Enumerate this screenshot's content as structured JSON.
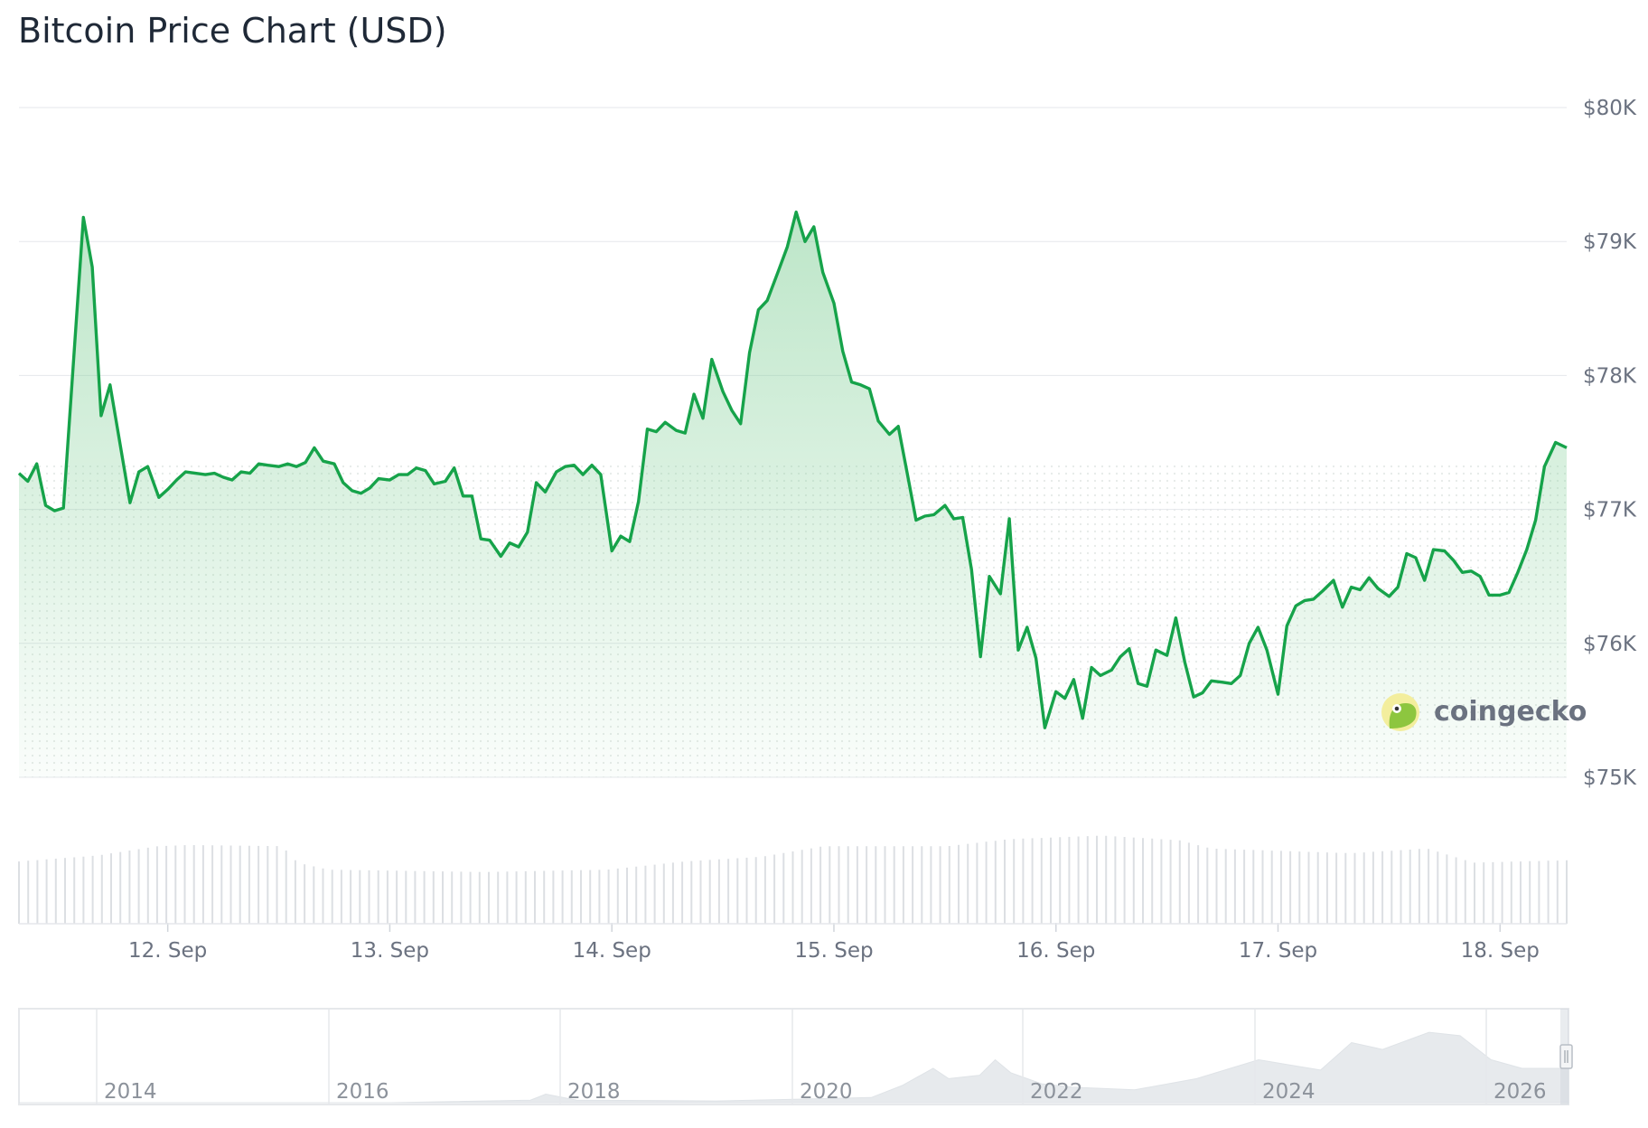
{
  "title": "Bitcoin Price Chart (USD)",
  "watermark": "coingecko",
  "colors": {
    "line": "#16a34a",
    "fill": "#86d19b",
    "grid": "#e5e7eb",
    "volume": "#dcdfe3",
    "navigator": "#e5e7eb"
  },
  "chart_data": {
    "type": "area",
    "title": "Bitcoin Price Chart (USD)",
    "xlabel": "",
    "ylabel": "",
    "ylim": [
      75000,
      80000
    ],
    "y_ticks": [
      "$75K",
      "$76K",
      "$77K",
      "$78K",
      "$79K",
      "$80K"
    ],
    "y_tick_values": [
      75000,
      76000,
      77000,
      78000,
      79000,
      80000
    ],
    "x_ticks": [
      "12. Sep",
      "13. Sep",
      "14. Sep",
      "15. Sep",
      "16. Sep",
      "17. Sep",
      "18. Sep"
    ],
    "x_tick_values": [
      12,
      13,
      14,
      15,
      16,
      17,
      18
    ],
    "x_range_days": [
      11.33,
      18.3
    ],
    "grid": true,
    "series": [
      {
        "x": [
          11.33,
          11.37,
          11.41,
          11.45,
          11.49,
          11.53,
          11.62,
          11.66,
          11.7,
          11.74,
          11.83,
          11.87,
          11.91,
          11.96,
          12.0,
          12.04,
          12.08,
          12.17,
          12.21,
          12.25,
          12.29,
          12.33,
          12.37,
          12.41,
          12.45,
          12.5,
          12.54,
          12.58,
          12.62,
          12.66,
          12.7,
          12.75,
          12.79,
          12.83,
          12.87,
          12.91,
          12.95,
          13.0,
          13.04,
          13.08,
          13.12,
          13.16,
          13.2,
          13.25,
          13.29,
          13.33,
          13.37,
          13.41,
          13.45,
          13.5,
          13.54,
          13.58,
          13.62,
          13.66,
          13.7,
          13.75,
          13.79,
          13.83,
          13.87,
          13.91,
          13.95,
          14.0,
          14.04,
          14.08,
          14.12,
          14.16,
          14.2,
          14.24,
          14.29,
          14.33,
          14.37,
          14.41,
          14.45,
          14.5,
          14.54,
          14.58,
          14.62,
          14.66,
          14.7,
          14.75,
          14.79,
          14.83,
          14.87,
          14.91,
          14.95,
          15.0,
          15.04,
          15.08,
          15.12,
          15.16,
          15.2,
          15.25,
          15.29,
          15.33,
          15.37,
          15.41,
          15.45,
          15.5,
          15.54,
          15.58,
          15.62,
          15.66,
          15.7,
          15.75,
          15.79,
          15.83,
          15.87,
          15.91,
          15.95,
          16.0,
          16.04,
          16.08,
          16.12,
          16.16,
          16.2,
          16.25,
          16.29,
          16.33,
          16.37,
          16.41,
          16.45,
          16.5,
          16.54,
          16.58,
          16.62,
          16.66,
          16.7,
          16.75,
          16.79,
          16.83,
          16.87,
          16.91,
          16.95,
          17.0,
          17.04,
          17.08,
          17.12,
          17.16,
          17.2,
          17.25,
          17.29,
          17.33,
          17.37,
          17.41,
          17.45,
          17.5,
          17.54,
          17.58,
          17.62,
          17.66,
          17.7,
          17.75,
          17.79,
          17.83,
          17.87,
          17.91,
          17.95,
          18.0,
          18.04,
          18.08,
          18.12,
          18.16,
          18.2,
          18.25,
          18.3
        ],
        "y": [
          77270,
          77210,
          77340,
          77030,
          76990,
          77010,
          79180,
          78810,
          77700,
          77930,
          77050,
          77280,
          77320,
          77090,
          77150,
          77220,
          77280,
          77260,
          77270,
          77240,
          77220,
          77280,
          77270,
          77340,
          77330,
          77320,
          77340,
          77320,
          77350,
          77460,
          77360,
          77340,
          77200,
          77140,
          77120,
          77160,
          77230,
          77220,
          77260,
          77260,
          77310,
          77290,
          77190,
          77210,
          77310,
          77100,
          77100,
          76780,
          76770,
          76650,
          76750,
          76720,
          76830,
          77200,
          77130,
          77280,
          77320,
          77330,
          77260,
          77330,
          77260,
          76690,
          76800,
          76760,
          77060,
          77600,
          77580,
          77650,
          77590,
          77570,
          77860,
          77680,
          78120,
          77880,
          77740,
          77640,
          78170,
          78490,
          78560,
          78780,
          78960,
          79220,
          79000,
          79110,
          78770,
          78540,
          78180,
          77950,
          77930,
          77900,
          77660,
          77560,
          77620,
          77270,
          76920,
          76950,
          76960,
          77030,
          76930,
          76940,
          76550,
          75900,
          76500,
          76370,
          76930,
          75950,
          76120,
          75890,
          75370,
          75640,
          75590,
          75730,
          75440,
          75820,
          75760,
          75800,
          75900,
          75960,
          75700,
          75680,
          75950,
          75910,
          76190,
          75860,
          75600,
          75630,
          75720,
          75710,
          75700,
          75760,
          76000,
          76120,
          75950,
          75620,
          76130,
          76280,
          76320,
          76330,
          76390,
          76470,
          76270,
          76420,
          76400,
          76490,
          76410,
          76350,
          76420,
          76670,
          76640,
          76470,
          76700,
          76690,
          76620,
          76530,
          76540,
          76500,
          76360,
          76360,
          76380,
          76530,
          76700,
          76920,
          77320,
          77500,
          77460
        ]
      }
    ]
  },
  "navigator": {
    "labels": [
      "2014",
      "2016",
      "2018",
      "2020",
      "2022",
      "2024",
      "2026"
    ]
  }
}
